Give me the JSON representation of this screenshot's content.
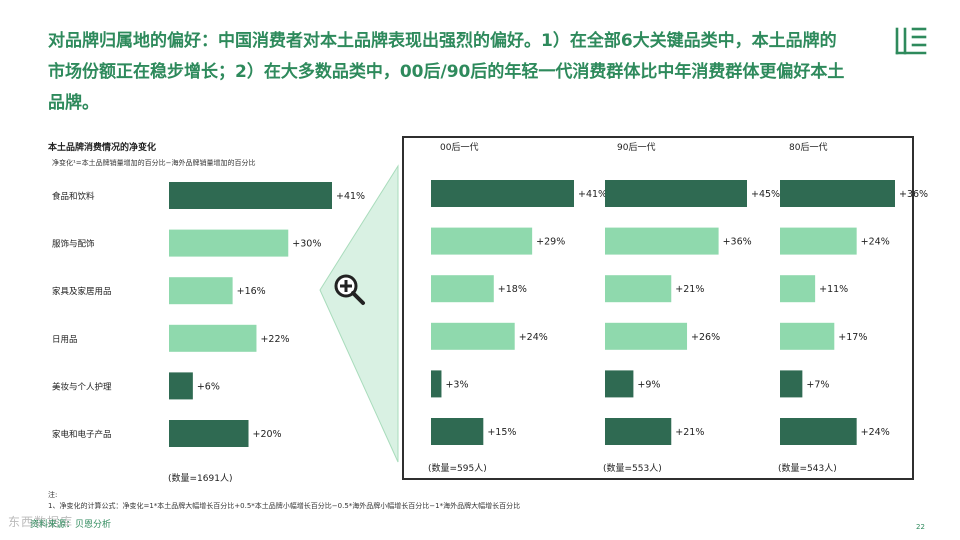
{
  "headline": "对品牌归属地的偏好：中国消费者对本土品牌表现出强烈的偏好。1）在全部6大关键品类中，本土品牌的市场份额正在稳步增长；2）在大多数品类中，00后/90后的年轻一代消费群体比中年消费群体更偏好本土品牌。",
  "colors": {
    "accent": "#2e8a5c",
    "dark_bar": "#2f6a52",
    "light_bar": "#8fd9ad"
  },
  "icons": {
    "zoom": "zoom-in-icon",
    "logo": "brand-logo-icon"
  },
  "chart_data": [
    {
      "type": "bar",
      "orientation": "horizontal",
      "title": "本土品牌消费情况的净变化",
      "subtitle": "净变化¹=本土品牌销量增加的百分比−海外品牌销量增加的百分比",
      "categories": [
        "食品和饮料",
        "服饰与配饰",
        "家具及家居用品",
        "日用品",
        "美妆与个人护理",
        "家电和电子产品"
      ],
      "values": [
        41,
        30,
        16,
        22,
        6,
        20
      ],
      "value_labels": [
        "+41%",
        "+30%",
        "+16%",
        "+22%",
        "+6%",
        "+20%"
      ],
      "bar_colors": [
        "dark",
        "light",
        "light",
        "light",
        "dark",
        "dark"
      ],
      "sample": "(数量=1691人)"
    },
    {
      "type": "bar",
      "orientation": "horizontal",
      "title": "00后一代",
      "categories": [
        "食品和饮料",
        "服饰与配饰",
        "家具及家居用品",
        "日用品",
        "美妆与个人护理",
        "家电和电子产品"
      ],
      "values": [
        41,
        29,
        18,
        24,
        3,
        15
      ],
      "value_labels": [
        "+41%",
        "+29%",
        "+18%",
        "+24%",
        "+3%",
        "+15%"
      ],
      "bar_colors": [
        "dark",
        "light",
        "light",
        "light",
        "dark",
        "dark"
      ],
      "sample": "(数量=595人)"
    },
    {
      "type": "bar",
      "orientation": "horizontal",
      "title": "90后一代",
      "categories": [
        "食品和饮料",
        "服饰与配饰",
        "家具及家居用品",
        "日用品",
        "美妆与个人护理",
        "家电和电子产品"
      ],
      "values": [
        45,
        36,
        21,
        26,
        9,
        21
      ],
      "value_labels": [
        "+45%",
        "+36%",
        "+21%",
        "+26%",
        "+9%",
        "+21%"
      ],
      "bar_colors": [
        "dark",
        "light",
        "light",
        "light",
        "dark",
        "dark"
      ],
      "sample": "(数量=553人)"
    },
    {
      "type": "bar",
      "orientation": "horizontal",
      "title": "80后一代",
      "categories": [
        "食品和饮料",
        "服饰与配饰",
        "家具及家居用品",
        "日用品",
        "美妆与个人护理",
        "家电和电子产品"
      ],
      "values": [
        36,
        24,
        11,
        17,
        7,
        24
      ],
      "value_labels": [
        "+36%",
        "+24%",
        "+11%",
        "+17%",
        "+7%",
        "+24%"
      ],
      "bar_colors": [
        "dark",
        "light",
        "light",
        "light",
        "dark",
        "dark"
      ],
      "sample": "(数量=543人)"
    }
  ],
  "notes": {
    "label": "注:",
    "line1": "1、净变化的计算公式：净变化=1*本土品牌大幅增长百分比+0.5*本土品牌小幅增长百分比−0.5*海外品牌小幅增长百分比−1*海外品牌大幅增长百分比"
  },
  "source": "资料来源：贝恩分析",
  "watermark": "东西数据库",
  "page_number": "22"
}
